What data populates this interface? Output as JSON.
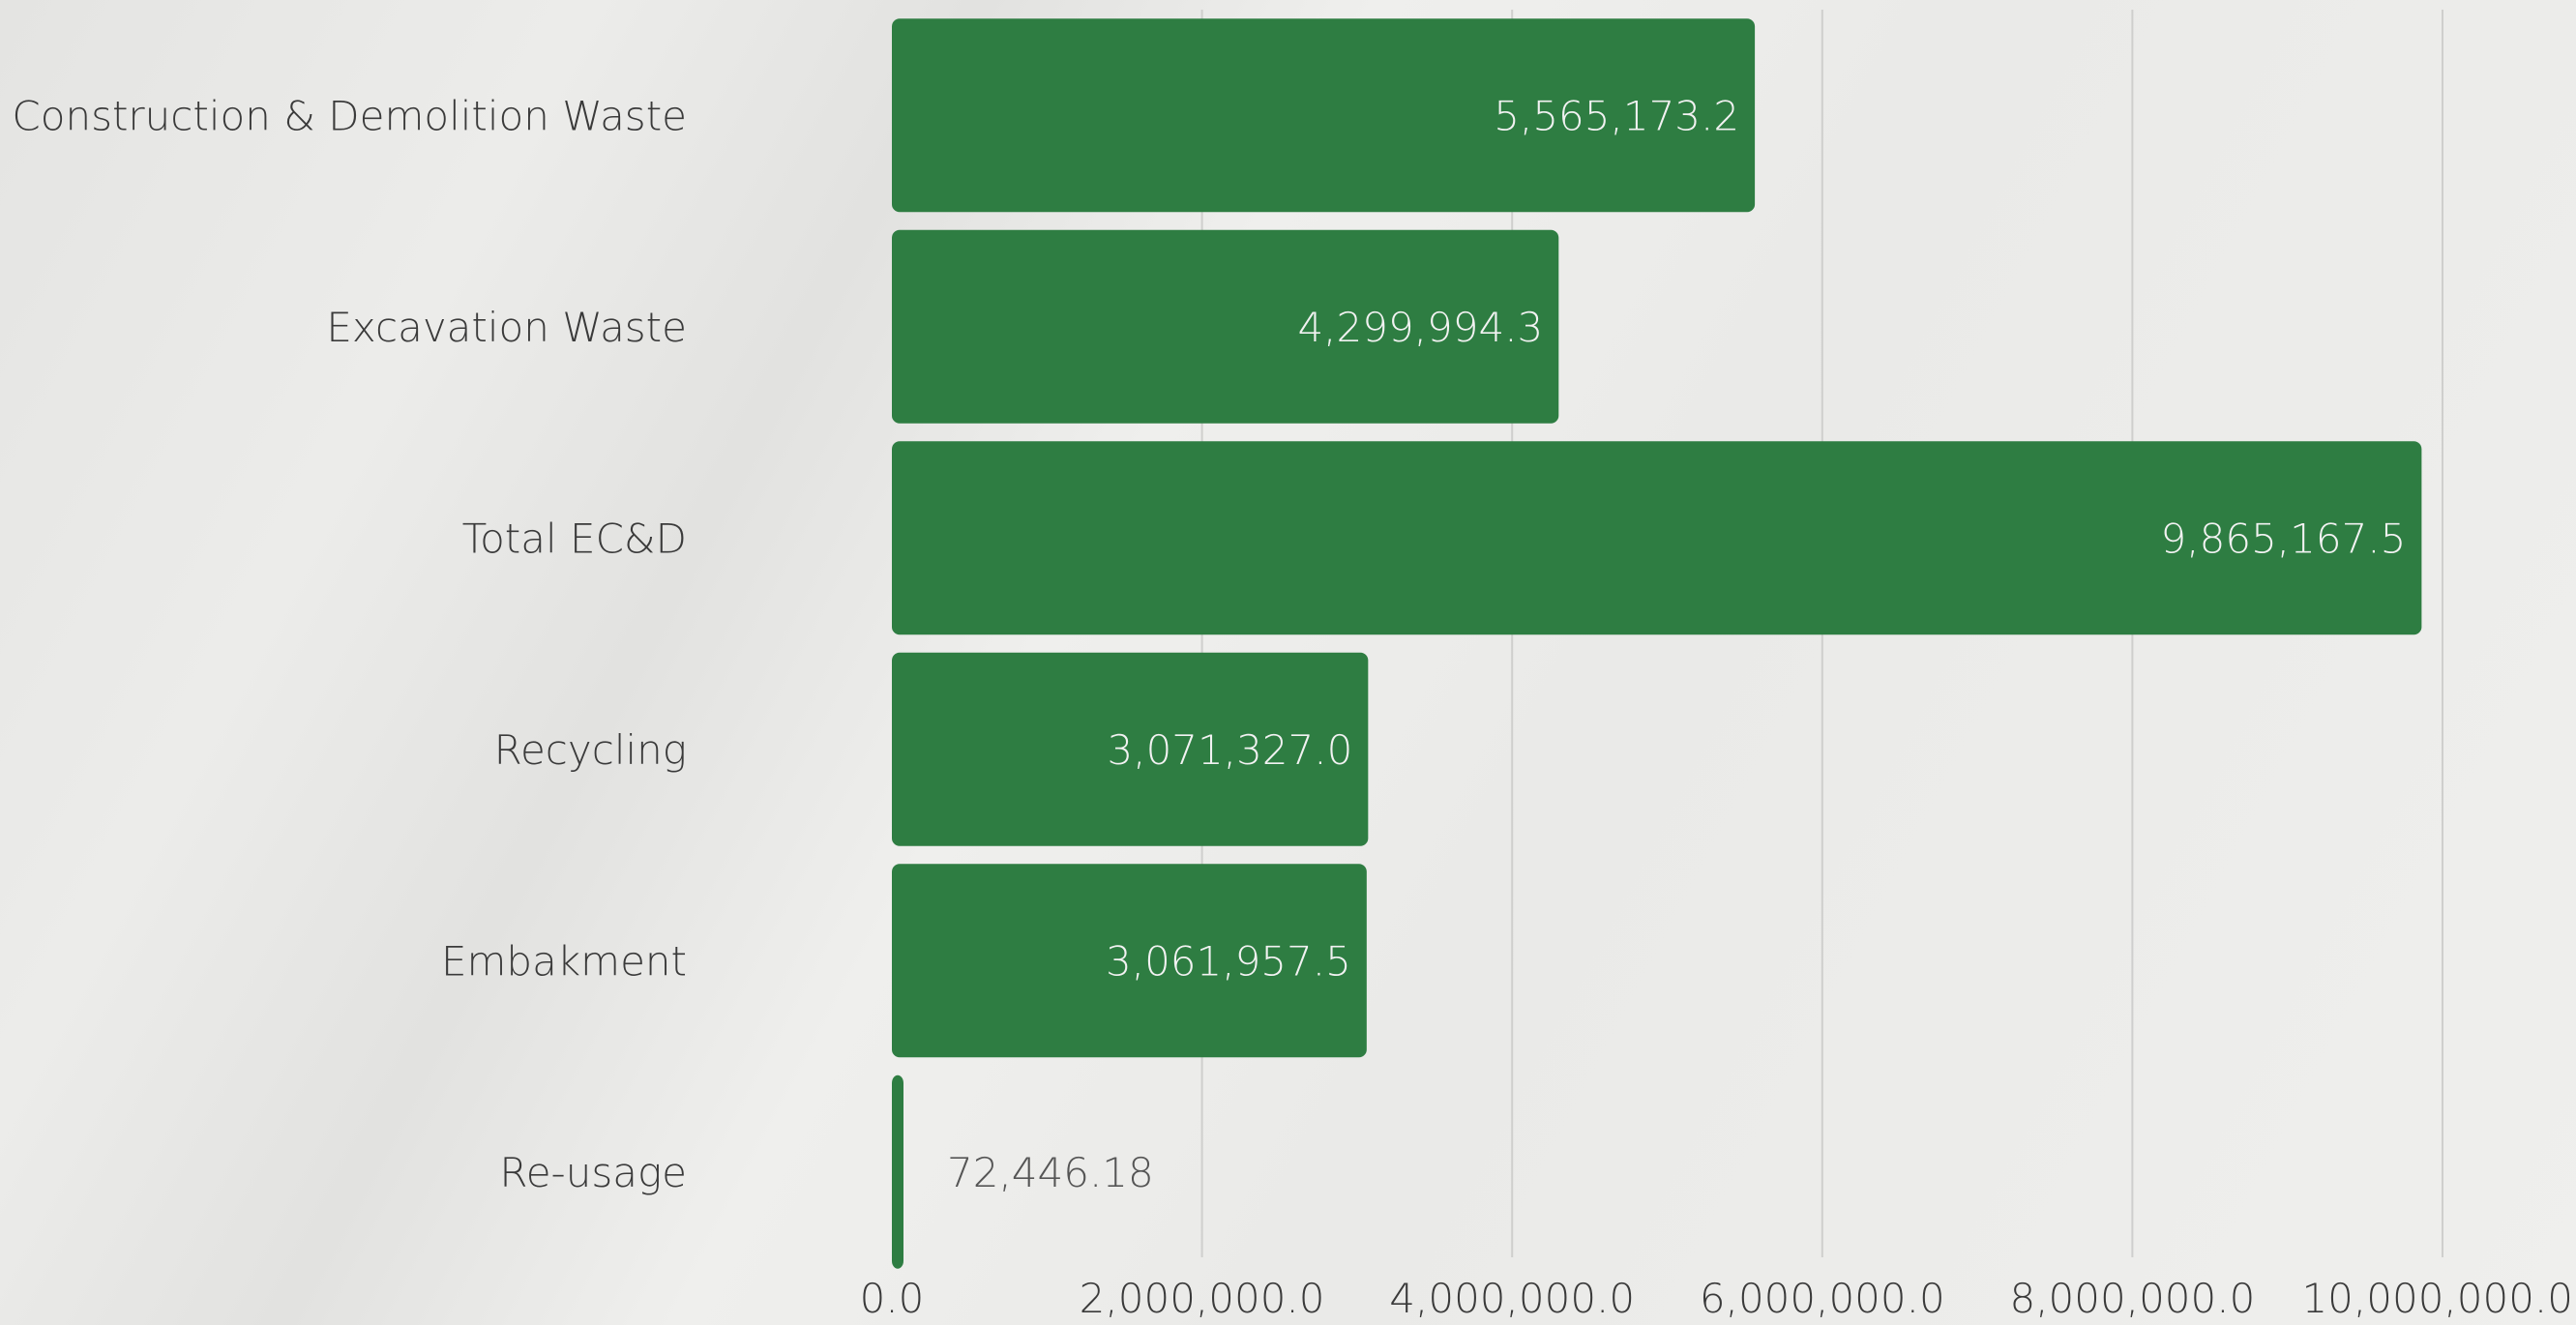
{
  "chart_data": {
    "type": "bar",
    "orientation": "horizontal",
    "categories": [
      "Construction & Demolition Waste",
      "Excavation Waste",
      "Total EC&D",
      "Recycling",
      "Embakment",
      "Re-usage"
    ],
    "values": [
      5565173.2,
      4299994.3,
      9865167.5,
      3071327.0,
      3061957.5,
      72446.18
    ],
    "value_labels": [
      "5,565,173.2",
      "4,299,994.3",
      "9,865,167.5",
      "3,071,327.0",
      "3,061,957.5",
      "72,446.18"
    ],
    "x_ticks": [
      0,
      2000000,
      4000000,
      6000000,
      8000000,
      10000000
    ],
    "x_tick_labels": [
      "0.0",
      "2,000,000.0",
      "4,000,000.0",
      "6,000,000.0",
      "8,000,000.0",
      "10,000,000.0"
    ],
    "xlim": [
      0,
      10000000
    ],
    "title": "",
    "xlabel": "",
    "ylabel": "",
    "grid": true,
    "legend": "none",
    "bar_color": "#2e7d42",
    "inside_label_color": "#f2f2f2",
    "outside_label_color": "#555555"
  }
}
